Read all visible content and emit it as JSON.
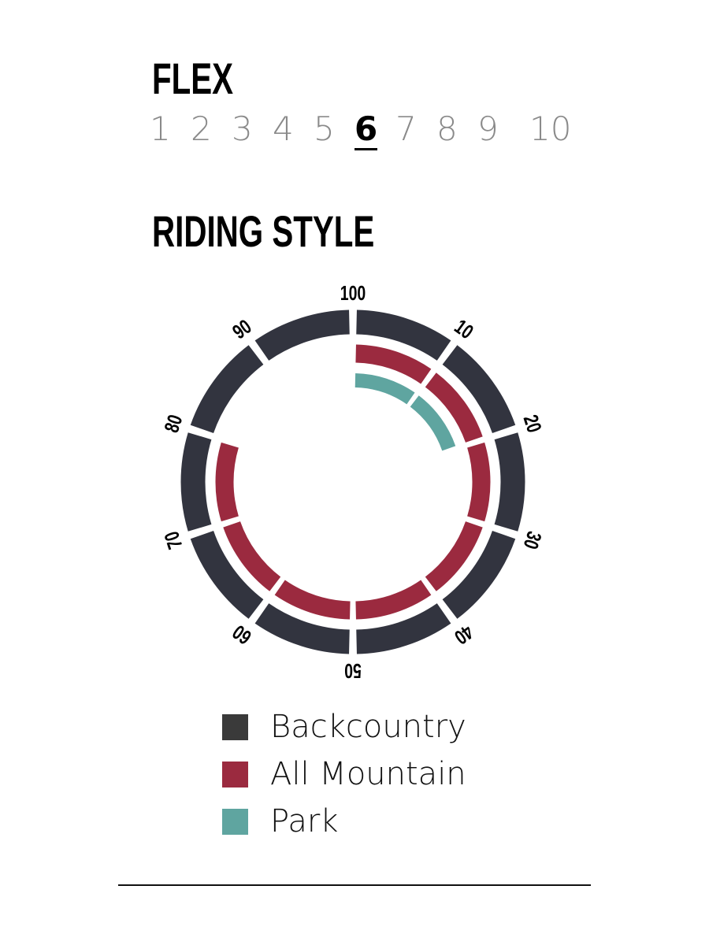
{
  "flex": {
    "title": "FLEX",
    "scale": [
      "1",
      "2",
      "3",
      "4",
      "5",
      "6",
      "7",
      "8",
      "9",
      "10"
    ],
    "selected": 6
  },
  "chart_data": {
    "type": "radial-bar",
    "title": "RIDING STYLE",
    "tick_labels": [
      "100",
      "10",
      "20",
      "30",
      "40",
      "50",
      "60",
      "70",
      "80",
      "90"
    ],
    "range": [
      0,
      100
    ],
    "segment_step": 10,
    "series": [
      {
        "name": "Backcountry",
        "value": 100,
        "color": "#32343f"
      },
      {
        "name": "All Mountain",
        "value": 80,
        "color": "#9b2a3f"
      },
      {
        "name": "Park",
        "value": 20,
        "color": "#5fa5a0"
      }
    ]
  },
  "legend": {
    "items": [
      {
        "label": "Backcountry",
        "color": "#3a3a3a"
      },
      {
        "label": "All Mountain",
        "color": "#9b2a3f"
      },
      {
        "label": "Park",
        "color": "#5fa5a0"
      }
    ]
  }
}
